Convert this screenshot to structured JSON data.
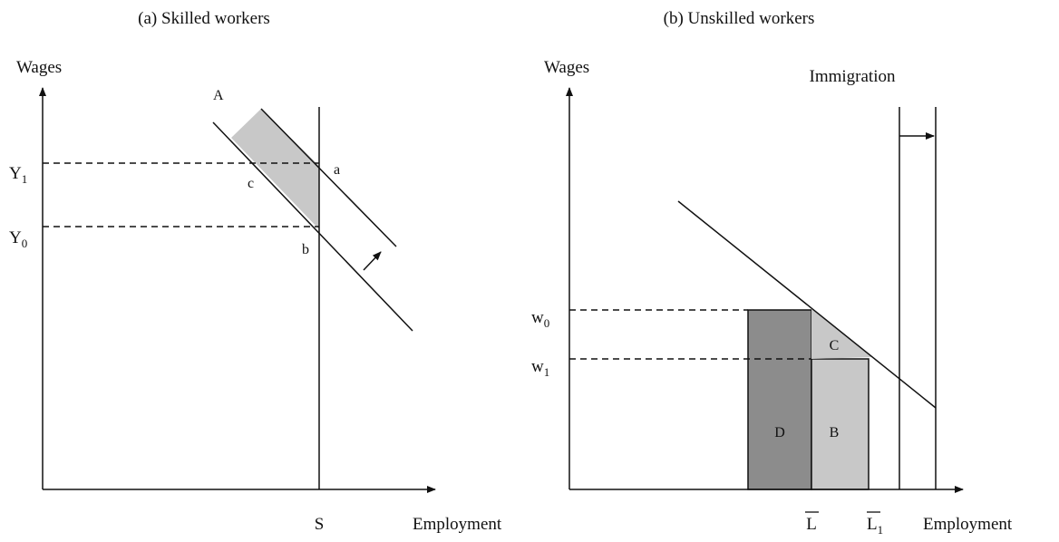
{
  "panel_a": {
    "title": "(a) Skilled workers",
    "y_label": "Wages",
    "x_label": "Employment",
    "supply_label": "S",
    "demand_label": "A",
    "wage_high": {
      "base": "Y",
      "sub": "1"
    },
    "wage_low": {
      "base": "Y",
      "sub": "0"
    },
    "points": [
      "a",
      "b",
      "c"
    ]
  },
  "panel_b": {
    "title": "(b) Unskilled workers",
    "y_label": "Wages",
    "x_label": "Employment",
    "shift_label": "Immigration",
    "wage_high": {
      "base": "w",
      "sub": "0"
    },
    "wage_low": {
      "base": "w",
      "sub": "1"
    },
    "labor_initial": "L",
    "labor_new": {
      "base": "L",
      "sub": "1"
    },
    "areas": [
      "D",
      "B",
      "C"
    ]
  }
}
